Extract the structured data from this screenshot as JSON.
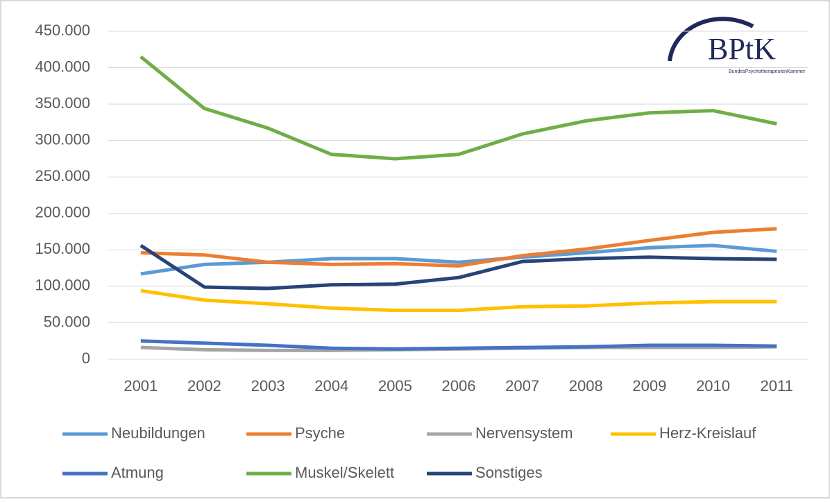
{
  "chart_data": {
    "type": "line",
    "categories": [
      "2001",
      "2002",
      "2003",
      "2004",
      "2005",
      "2006",
      "2007",
      "2008",
      "2009",
      "2010",
      "2011"
    ],
    "series": [
      {
        "name": "Neubildungen",
        "color": "#5b9bd5",
        "values": [
          117000,
          130000,
          133000,
          138000,
          138000,
          133000,
          140000,
          146000,
          153000,
          156000,
          148000
        ]
      },
      {
        "name": "Psyche",
        "color": "#ed7d31",
        "values": [
          146000,
          143000,
          133000,
          130000,
          131000,
          128000,
          142000,
          151000,
          163000,
          174000,
          179000
        ]
      },
      {
        "name": "Nervensystem",
        "color": "#a5a5a5",
        "values": [
          16000,
          13000,
          12000,
          12000,
          13000,
          14000,
          15000,
          16000,
          16000,
          16000,
          17000
        ]
      },
      {
        "name": "Herz-Kreislauf",
        "color": "#ffc000",
        "values": [
          94000,
          81000,
          76000,
          70000,
          67000,
          67000,
          72000,
          73000,
          77000,
          79000,
          79000
        ]
      },
      {
        "name": "Atmung",
        "color": "#4472c4",
        "values": [
          25000,
          22000,
          19000,
          15000,
          14000,
          15000,
          16000,
          17000,
          19000,
          19000,
          18000
        ]
      },
      {
        "name": "Muskel/Skelett",
        "color": "#70ad47",
        "values": [
          415000,
          344000,
          317000,
          281000,
          275000,
          281000,
          309000,
          327000,
          338000,
          341000,
          323000
        ]
      },
      {
        "name": "Sonstiges",
        "color": "#264478",
        "values": [
          156000,
          99000,
          97000,
          102000,
          103000,
          112000,
          134000,
          138000,
          140000,
          138000,
          137000
        ]
      }
    ],
    "ylim": [
      0,
      450000
    ],
    "yticks": [
      0,
      {
        "value": 50000,
        "label": "50.000"
      },
      {
        "value": 100000,
        "label": "100.000"
      },
      {
        "value": 150000,
        "label": "150.000"
      },
      {
        "value": 200000,
        "label": "200.000"
      },
      {
        "value": 250000,
        "label": "250.000"
      },
      {
        "value": 300000,
        "label": "300.000"
      },
      {
        "value": 350000,
        "label": "350.000"
      },
      {
        "value": 400000,
        "label": "400.000"
      },
      {
        "value": 450000,
        "label": "450.000"
      }
    ],
    "grid": true,
    "legend": "bottom"
  },
  "logo": {
    "text": "BPtK",
    "subtitle": "BundesPsychotherapeutenKammer"
  }
}
